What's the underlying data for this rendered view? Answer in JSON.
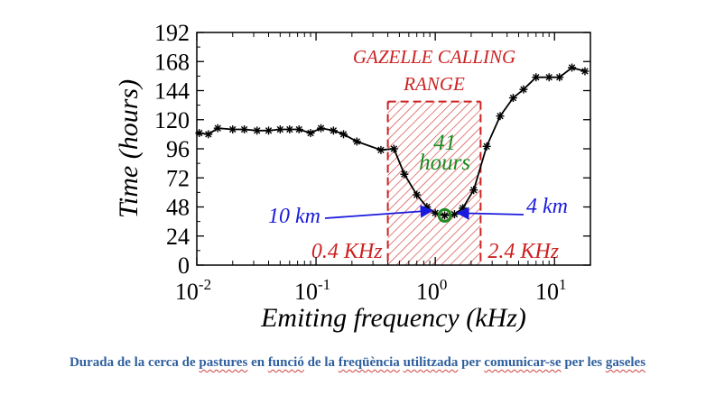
{
  "chart_data": {
    "type": "line",
    "xscale": "log",
    "xlim": [
      0.01,
      20
    ],
    "ylim": [
      0,
      192
    ],
    "xlabel": "Emiting frequency (kHz)",
    "ylabel": "Time (hours)",
    "y_ticks": [
      "0",
      "24",
      "48",
      "72",
      "96",
      "120",
      "144",
      "168",
      "192"
    ],
    "x_ticks": [
      {
        "value": 0.01,
        "base": "10",
        "exp": "-2"
      },
      {
        "value": 0.1,
        "base": "10",
        "exp": "-1"
      },
      {
        "value": 1,
        "base": "10",
        "exp": "0"
      },
      {
        "value": 10,
        "base": "10",
        "exp": "1"
      }
    ],
    "series": [
      {
        "color": "#000000",
        "marker": "asterisk",
        "points": [
          [
            0.0105,
            109
          ],
          [
            0.0125,
            108
          ],
          [
            0.015,
            113
          ],
          [
            0.02,
            112
          ],
          [
            0.025,
            112
          ],
          [
            0.032,
            111
          ],
          [
            0.04,
            111
          ],
          [
            0.05,
            112
          ],
          [
            0.06,
            112
          ],
          [
            0.072,
            112
          ],
          [
            0.09,
            109
          ],
          [
            0.11,
            113
          ],
          [
            0.14,
            111
          ],
          [
            0.17,
            108
          ],
          [
            0.22,
            102
          ],
          [
            0.35,
            95
          ],
          [
            0.45,
            96
          ],
          [
            0.55,
            75
          ],
          [
            0.7,
            58
          ],
          [
            0.85,
            48
          ],
          [
            1.0,
            43
          ],
          [
            1.2,
            41
          ],
          [
            1.45,
            42
          ],
          [
            1.7,
            47
          ],
          [
            2.1,
            62
          ],
          [
            2.7,
            98
          ],
          [
            3.5,
            123
          ],
          [
            4.5,
            138
          ],
          [
            5.5,
            145
          ],
          [
            7.0,
            155
          ],
          [
            9.0,
            155
          ],
          [
            11.0,
            155
          ],
          [
            14.0,
            163
          ],
          [
            18.0,
            160
          ]
        ]
      }
    ],
    "highlight_band": {
      "x_start": 0.4,
      "x_end": 2.4,
      "y_top": 135,
      "color": "#cc2222"
    },
    "minimum_point": {
      "x": 1.2,
      "y": 41,
      "color": "#1f8a1f"
    },
    "annotations": {
      "band_title_line1": "GAZELLE CALLING",
      "band_title_line2": "RANGE",
      "minimum_value": "41",
      "minimum_unit": "hours",
      "left_distance": "10 km",
      "right_distance": "4 km",
      "left_edge": "0.4 KHz",
      "right_edge": "2.4 KHz"
    }
  },
  "caption": {
    "words": [
      {
        "text": "Durada de la cerca de",
        "squiggle": false
      },
      {
        "text": "pastures",
        "squiggle": true
      },
      {
        "text": "en",
        "squiggle": false
      },
      {
        "text": "funció",
        "squiggle": true
      },
      {
        "text": "de la",
        "squiggle": false
      },
      {
        "text": "freqüència",
        "squiggle": true
      },
      {
        "text": "utilitzada",
        "squiggle": true
      },
      {
        "text": "per",
        "squiggle": false
      },
      {
        "text": "comunicar-se",
        "squiggle": true
      },
      {
        "text": "per les",
        "squiggle": false
      },
      {
        "text": "gaseles",
        "squiggle": true
      }
    ]
  },
  "colors": {
    "annotation_blue": "#1a1adc",
    "band_red": "#cc2222",
    "green": "#1f8a1f",
    "caption": "#2e5f9e"
  }
}
